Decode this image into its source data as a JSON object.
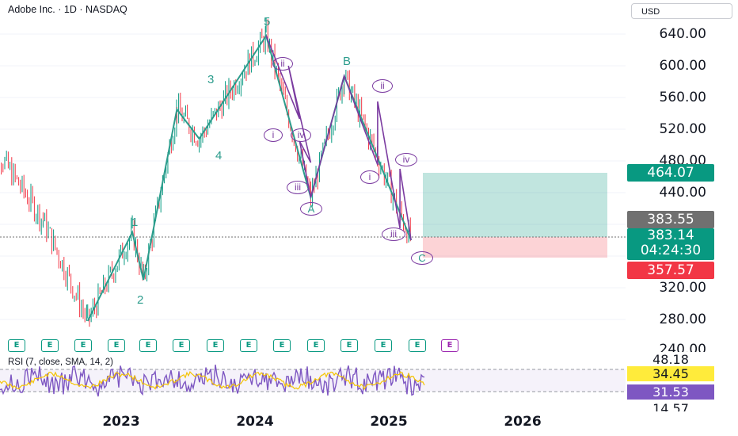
{
  "header": {
    "symbol_title": "Adobe Inc. · 1D · NASDAQ",
    "currency": "USD"
  },
  "price_axis": {
    "labels": [
      "640.00",
      "600.00",
      "560.00",
      "520.00",
      "480.00",
      "440.00",
      "320.00",
      "280.00",
      "240.00"
    ]
  },
  "time_axis": {
    "labels": [
      "2023",
      "2024",
      "2025",
      "2026"
    ]
  },
  "badges": {
    "target": "464.07",
    "prev": "383.55",
    "last": "383.14",
    "countdown": "04:24:30",
    "stop": "357.57"
  },
  "rsi": {
    "title": "RSI (7, close, SMA, 14, 2)",
    "top_value": "48.18",
    "rsi_value": "34.45",
    "sma_value": "31.53",
    "bottom_value": "14.57"
  },
  "earnings_marker": "E",
  "wave_labels": {
    "w1": "1",
    "w2": "2",
    "w3": "3",
    "w4": "4",
    "w5": "5",
    "A": "A",
    "B": "B",
    "C": "C",
    "r_ii_1": "ii",
    "r_i_1": "i",
    "r_iv_1": "iv",
    "r_iii_1": "iii",
    "r_ii_2": "ii",
    "r_i_2": "i",
    "r_iv_2": "iv",
    "r_iii_2": "iii"
  },
  "colors": {
    "up": "#089981",
    "down": "#f23645",
    "wave": "#2c9c8c",
    "subwave": "#7b3ba0",
    "rsi": "#7e57c2",
    "rsi_sma": "#f5c400",
    "target_bg": "#089981",
    "stop_bg": "#f23645",
    "prev_bg": "#707070"
  },
  "chart_data": {
    "type": "line",
    "title": "Adobe Inc. · 1D · NASDAQ",
    "ylim": [
      240,
      660
    ],
    "x_ticks": [
      "2023",
      "2024",
      "2025",
      "2026"
    ],
    "elliott_wave": [
      {
        "date": "2022-10",
        "price": 278
      },
      {
        "date": "2023-02",
        "price": 390
      },
      {
        "date": "2023-03",
        "price": 330
      },
      {
        "date": "2023-06",
        "price": 545
      },
      {
        "date": "2023-08",
        "price": 508
      },
      {
        "date": "2024-02",
        "price": 638
      },
      {
        "date": "2024-06",
        "price": 434
      },
      {
        "date": "2024-09",
        "price": 587
      },
      {
        "date": "2025-03",
        "price": 380
      }
    ],
    "position": {
      "entry": 383.14,
      "target": 464.07,
      "stop": 357.57
    },
    "rsi": {
      "length": 7,
      "sma": 14,
      "value": 34.45,
      "sma_value": 31.53
    }
  }
}
